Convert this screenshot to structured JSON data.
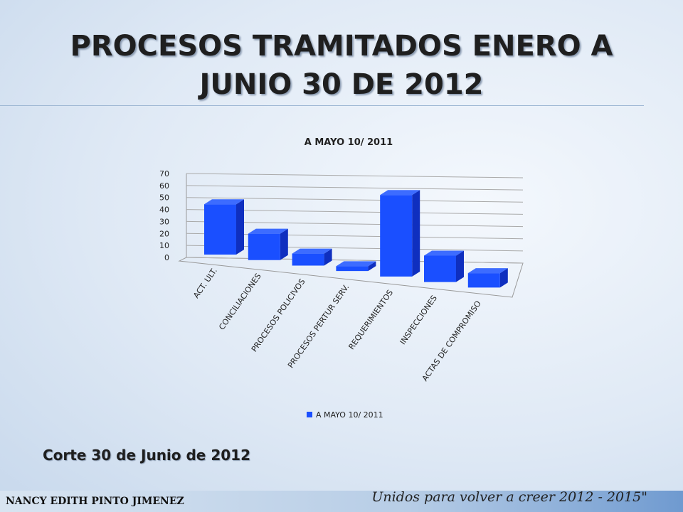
{
  "header": {
    "title": "PROCESOS TRAMITADOS ENERO A JUNIO 30 DE 2012"
  },
  "chart_data": {
    "type": "bar3d",
    "title": "A MAYO 10/ 2011",
    "categories": [
      "ACT. ULT.",
      "CONCILIACIONES",
      "PROCESOS POLICIVOS",
      "PROCESOS PERTUR SERV.",
      "REQUERIMIENTOS",
      "INSPECCIONES",
      "ACTAS DE COMPROMISO"
    ],
    "series": [
      {
        "name": "A MAYO 10/ 2011",
        "color": "#1a4fff",
        "values": [
          42,
          22,
          10,
          4,
          68,
          22,
          12
        ]
      }
    ],
    "ylim": [
      0,
      70
    ],
    "yticks": [
      0,
      10,
      20,
      30,
      40,
      50,
      60,
      70
    ],
    "grid": true,
    "legend": "bottom"
  },
  "note": "Corte  30 de Junio de 2012",
  "footer": {
    "author": "NANCY EDITH PINTO JIMENEZ",
    "motto": "Unidos para volver a creer 2012 - 2015\""
  }
}
